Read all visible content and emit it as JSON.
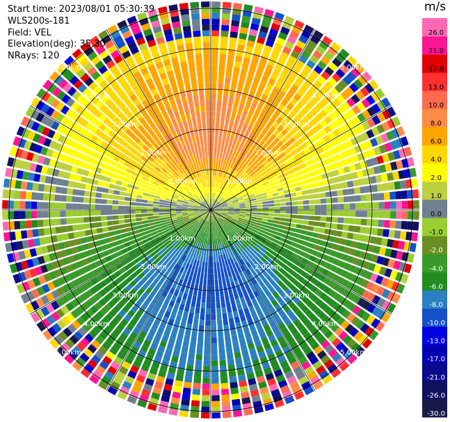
{
  "info": {
    "start_time": "Start time: 2023/08/01 05:30:39",
    "instrument": "WLS200s-181",
    "field": "Field: VEL",
    "elevation": "Elevation(deg): 35.30",
    "nrays": "NRays: 120"
  },
  "colorbar": {
    "unit": "m/s",
    "ticks": [
      "-30.0",
      "-26.0",
      "-21.0",
      "-17.0",
      "-13.0",
      "-10.0",
      "-8.0",
      "-6.0",
      "-4.0",
      "-2.0",
      "-1.0",
      "0.0",
      "1.0",
      "2.0",
      "4.0",
      "6.0",
      "8.0",
      "10.0",
      "13.0",
      "17.0",
      "21.0",
      "26.0"
    ],
    "colors": [
      "#1a1a4a",
      "#101060",
      "#0a0a8c",
      "#0000b4",
      "#0000e0",
      "#1450c8",
      "#2a80c0",
      "#228b22",
      "#3a9a2a",
      "#6b8e23",
      "#9acd32",
      "#708090",
      "#bcd040",
      "#ffff00",
      "#ffd700",
      "#ffa500",
      "#ff8c46",
      "#ff6a50",
      "#ff3030",
      "#e00000",
      "#ff1493",
      "#ff69b4"
    ]
  },
  "chart_data": {
    "type": "polar-ppi",
    "field": "VEL",
    "unit": "m/s",
    "range_rings_km": [
      1.0,
      2.0,
      3.0,
      4.0,
      5.0
    ],
    "range_labels": [
      "1.00km",
      "2.00km",
      "3.00km",
      "4.00km",
      "5.00km"
    ],
    "max_range_km": 5.2,
    "nrays": 120,
    "elevation_deg": 35.3,
    "velocity_pattern": {
      "positive_max_azimuth_deg": 0,
      "negative_max_azimuth_deg": 180,
      "positive_max_ms": 10.0,
      "negative_max_ms": -10.0
    }
  }
}
